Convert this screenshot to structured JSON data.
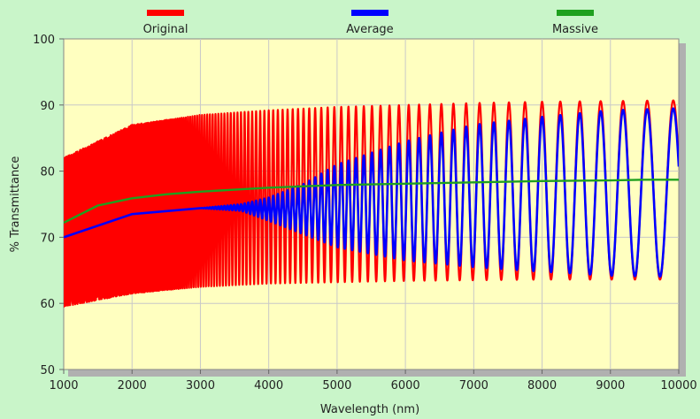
{
  "chart_data": {
    "type": "line",
    "title": "",
    "xlabel": "Wavelength (nm)",
    "ylabel": "% Transmittance",
    "xlim": [
      1000,
      10000
    ],
    "ylim": [
      50,
      100
    ],
    "x_ticks": [
      "1000",
      "2000",
      "3000",
      "4000",
      "5000",
      "6000",
      "7000",
      "8000",
      "9000",
      "10000"
    ],
    "y_ticks": [
      "50",
      "60",
      "70",
      "80",
      "90",
      "100"
    ],
    "grid": true,
    "legend_placement": "top",
    "background_color": "#ffffc0",
    "series": [
      {
        "name": "Original",
        "color": "#ff0000",
        "description": "fringes",
        "peak": [
          [
            1000,
            82
          ],
          [
            2000,
            87
          ],
          [
            3000,
            88.5
          ],
          [
            4000,
            89.2
          ],
          [
            5000,
            89.7
          ],
          [
            6000,
            90
          ],
          [
            7000,
            90.3
          ],
          [
            8000,
            90.5
          ],
          [
            9000,
            90.6
          ],
          [
            10000,
            90.7
          ]
        ],
        "valley": [
          [
            1000,
            59.5
          ],
          [
            2000,
            61.5
          ],
          [
            3000,
            62.5
          ],
          [
            4000,
            63
          ],
          [
            5000,
            63.2
          ],
          [
            6000,
            63.4
          ],
          [
            7000,
            63.5
          ],
          [
            8000,
            63.6
          ],
          [
            9000,
            63.6
          ],
          [
            10000,
            63.6
          ]
        ]
      },
      {
        "name": "Average",
        "color": "#0000ff",
        "peak": [
          [
            1000,
            70
          ],
          [
            2000,
            73.5
          ],
          [
            3000,
            74.4
          ],
          [
            3600,
            75
          ],
          [
            4000,
            76
          ],
          [
            4500,
            78
          ],
          [
            5000,
            81
          ],
          [
            6000,
            84.5
          ],
          [
            7000,
            87
          ],
          [
            8000,
            88.2
          ],
          [
            9000,
            89.2
          ],
          [
            10000,
            89.5
          ]
        ],
        "valley": [
          [
            1000,
            70
          ],
          [
            2000,
            73.5
          ],
          [
            3000,
            74.4
          ],
          [
            3600,
            74
          ],
          [
            4000,
            72.5
          ],
          [
            4500,
            70.5
          ],
          [
            5000,
            68.5
          ],
          [
            6000,
            66.5
          ],
          [
            7000,
            65.5
          ],
          [
            8000,
            64.8
          ],
          [
            9000,
            64.2
          ],
          [
            10000,
            64
          ]
        ]
      },
      {
        "name": "Massive",
        "color": "#1fa01f",
        "values_x": [
          1000,
          1500,
          2000,
          2500,
          3000,
          3500,
          4000,
          4500,
          5000,
          6000,
          7000,
          8000,
          9000,
          9500,
          10000
        ],
        "values_y": [
          72.2,
          74.8,
          75.9,
          76.5,
          76.9,
          77.2,
          77.5,
          77.7,
          77.9,
          78.1,
          78.3,
          78.5,
          78.6,
          78.7,
          78.7
        ]
      }
    ]
  }
}
